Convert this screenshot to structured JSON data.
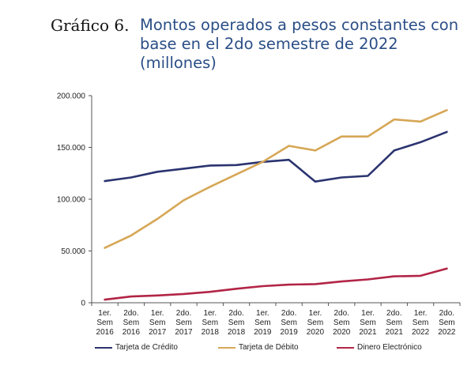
{
  "header": {
    "label": "Gráfico 6.",
    "title_lines": [
      "Montos operados a pesos constantes con",
      "base en el 2do semestre de 2022",
      "(millones)"
    ]
  },
  "chart_data": {
    "type": "line",
    "x": [
      [
        "1er.",
        "Sem",
        "2016"
      ],
      [
        "2do.",
        "Sem",
        "2016"
      ],
      [
        "1er.",
        "Sem",
        "2017"
      ],
      [
        "2do.",
        "Sem",
        "2017"
      ],
      [
        "1er.",
        "Sem",
        "2018"
      ],
      [
        "2do.",
        "Sem",
        "2018"
      ],
      [
        "1er.",
        "Sem",
        "2019"
      ],
      [
        "2do.",
        "Sem",
        "2019"
      ],
      [
        "1er.",
        "Sem",
        "2020"
      ],
      [
        "2do.",
        "Sem",
        "2020"
      ],
      [
        "1er.",
        "Sem",
        "2021"
      ],
      [
        "2do.",
        "Sem",
        "2021"
      ],
      [
        "1er.",
        "Sem",
        "2022"
      ],
      [
        "2do.",
        "Sem",
        "2022"
      ]
    ],
    "ylim": [
      0,
      200000
    ],
    "yticks": [
      0,
      50000,
      100000,
      150000,
      200000
    ],
    "ytick_labels": [
      "0",
      "50.000",
      "100.000",
      "150.000",
      "200.000"
    ],
    "grid": false,
    "legend_position": "bottom",
    "series": [
      {
        "name": "Tarjeta de Crédito",
        "color": "#2b3470",
        "values": [
          117500,
          121000,
          126500,
          129500,
          132500,
          133000,
          136000,
          138000,
          117000,
          121000,
          122500,
          147000,
          155000,
          165000
        ]
      },
      {
        "name": "Tarjeta de Débito",
        "color": "#d6a756",
        "values": [
          53000,
          65000,
          81000,
          99000,
          112000,
          124000,
          136000,
          151500,
          147000,
          160500,
          160500,
          177000,
          175000,
          186000
        ]
      },
      {
        "name": "Dinero Electrónico",
        "color": "#b22546",
        "values": [
          3000,
          6000,
          7000,
          8500,
          10500,
          13500,
          16000,
          17500,
          18000,
          20500,
          22500,
          25500,
          26000,
          33000
        ]
      }
    ]
  }
}
